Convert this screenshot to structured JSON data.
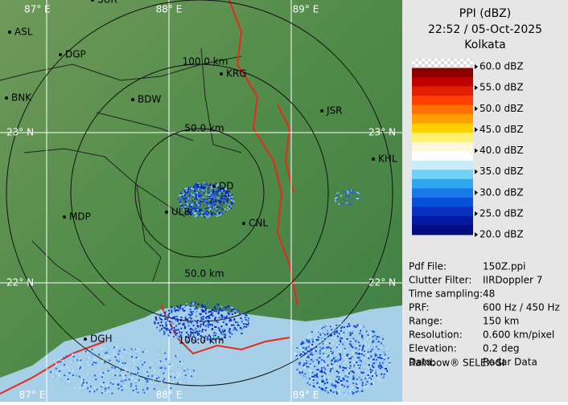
{
  "map": {
    "grid_labels": [
      "87° E",
      "88° E",
      "89° E",
      "23° N",
      "23° N",
      "22° N",
      "22° N",
      "87° E",
      "88° E",
      "89° E"
    ],
    "range_labels": [
      "100.0 km",
      "50.0 km",
      "50.0 km",
      "100.0 km"
    ],
    "cities": [
      "SUR",
      "ASL",
      "DGP",
      "KRG",
      "BDW",
      "BNK",
      "JSR",
      "KHL",
      "DD",
      "MDP",
      "ULB",
      "CNL",
      "DGH"
    ]
  },
  "legend": {
    "title": "PPI (dBZ)",
    "time": "22:52 / 05-Oct-2025",
    "station": "Kolkata",
    "labels": [
      "60.0 dBZ",
      "55.0 dBZ",
      "50.0 dBZ",
      "45.0 dBZ",
      "40.0 dBZ",
      "35.0 dBZ",
      "30.0 dBZ",
      "25.0 dBZ",
      "20.0 dBZ"
    ]
  },
  "info": {
    "rows": [
      [
        "Pdf File:",
        "150Z.ppi"
      ],
      [
        "Clutter Filter:",
        "IIRDoppler 7"
      ],
      [
        "Time sampling:",
        "48"
      ],
      [
        "PRF:",
        "600 Hz / 450 Hz"
      ],
      [
        "Range:",
        "150 km"
      ],
      [
        "Resolution:",
        "0.600 km/pixel"
      ],
      [
        "Elevation:",
        "0.2 deg"
      ],
      [
        "Data:",
        "Radar Data"
      ]
    ],
    "footer": "Rainbow® SELEX-SI"
  }
}
